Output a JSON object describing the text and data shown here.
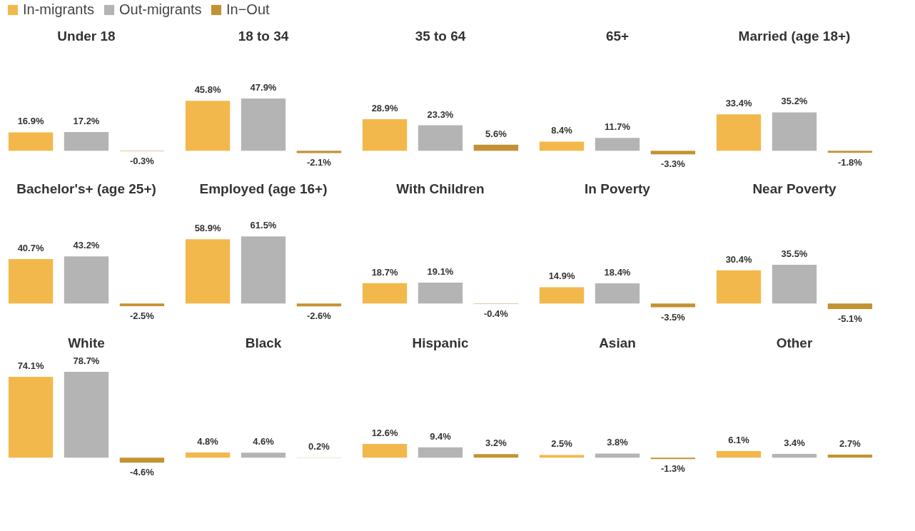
{
  "chart_data": [
    {
      "type": "bar",
      "title": "Under 18",
      "categories": [
        null
      ],
      "legend": "top",
      "series": [
        {
          "name": "In-migrants",
          "color": "#f2b84b",
          "values": [
            16.9
          ],
          "value_labels": [
            "16.9%"
          ]
        },
        {
          "name": "Out-migrants",
          "color": "#b4b4b4",
          "values": [
            17.2
          ],
          "value_labels": [
            "17.2%"
          ]
        },
        {
          "name": "In−Out",
          "color": "#c49232",
          "values": [
            -0.3
          ],
          "value_labels": [
            "-0.3%"
          ]
        }
      ]
    },
    {
      "type": "bar",
      "title": "18 to 34",
      "categories": [
        null
      ],
      "series": [
        {
          "name": "In-migrants",
          "color": "#f2b84b",
          "values": [
            45.8
          ],
          "value_labels": [
            "45.8%"
          ]
        },
        {
          "name": "Out-migrants",
          "color": "#b4b4b4",
          "values": [
            47.9
          ],
          "value_labels": [
            "47.9%"
          ]
        },
        {
          "name": "In−Out",
          "color": "#c49232",
          "values": [
            -2.1
          ],
          "value_labels": [
            "-2.1%"
          ]
        }
      ]
    },
    {
      "type": "bar",
      "title": "35 to 64",
      "categories": [
        null
      ],
      "series": [
        {
          "name": "In-migrants",
          "color": "#f2b84b",
          "values": [
            28.9
          ],
          "value_labels": [
            "28.9%"
          ]
        },
        {
          "name": "Out-migrants",
          "color": "#b4b4b4",
          "values": [
            23.3
          ],
          "value_labels": [
            "23.3%"
          ]
        },
        {
          "name": "In−Out",
          "color": "#c49232",
          "values": [
            5.6
          ],
          "value_labels": [
            "5.6%"
          ]
        }
      ]
    },
    {
      "type": "bar",
      "title": "65+",
      "categories": [
        null
      ],
      "series": [
        {
          "name": "In-migrants",
          "color": "#f2b84b",
          "values": [
            8.4
          ],
          "value_labels": [
            "8.4%"
          ]
        },
        {
          "name": "Out-migrants",
          "color": "#b4b4b4",
          "values": [
            11.7
          ],
          "value_labels": [
            "11.7%"
          ]
        },
        {
          "name": "In−Out",
          "color": "#c49232",
          "values": [
            -3.3
          ],
          "value_labels": [
            "-3.3%"
          ]
        }
      ]
    },
    {
      "type": "bar",
      "title": "Married (age 18+)",
      "categories": [
        null
      ],
      "series": [
        {
          "name": "In-migrants",
          "color": "#f2b84b",
          "values": [
            33.4
          ],
          "value_labels": [
            "33.4%"
          ]
        },
        {
          "name": "Out-migrants",
          "color": "#b4b4b4",
          "values": [
            35.2
          ],
          "value_labels": [
            "35.2%"
          ]
        },
        {
          "name": "In−Out",
          "color": "#c49232",
          "values": [
            -1.8
          ],
          "value_labels": [
            "-1.8%"
          ]
        }
      ]
    },
    {
      "type": "bar",
      "title": "Bachelor's+ (age 25+)",
      "categories": [
        null
      ],
      "series": [
        {
          "name": "In-migrants",
          "color": "#f2b84b",
          "values": [
            40.7
          ],
          "value_labels": [
            "40.7%"
          ]
        },
        {
          "name": "Out-migrants",
          "color": "#b4b4b4",
          "values": [
            43.2
          ],
          "value_labels": [
            "43.2%"
          ]
        },
        {
          "name": "In−Out",
          "color": "#c49232",
          "values": [
            -2.5
          ],
          "value_labels": [
            "-2.5%"
          ]
        }
      ]
    },
    {
      "type": "bar",
      "title": "Employed (age 16+)",
      "categories": [
        null
      ],
      "series": [
        {
          "name": "In-migrants",
          "color": "#f2b84b",
          "values": [
            58.9
          ],
          "value_labels": [
            "58.9%"
          ]
        },
        {
          "name": "Out-migrants",
          "color": "#b4b4b4",
          "values": [
            61.5
          ],
          "value_labels": [
            "61.5%"
          ]
        },
        {
          "name": "In−Out",
          "color": "#c49232",
          "values": [
            -2.6
          ],
          "value_labels": [
            "-2.6%"
          ]
        }
      ]
    },
    {
      "type": "bar",
      "title": "With Children",
      "categories": [
        null
      ],
      "series": [
        {
          "name": "In-migrants",
          "color": "#f2b84b",
          "values": [
            18.7
          ],
          "value_labels": [
            "18.7%"
          ]
        },
        {
          "name": "Out-migrants",
          "color": "#b4b4b4",
          "values": [
            19.1
          ],
          "value_labels": [
            "19.1%"
          ]
        },
        {
          "name": "In−Out",
          "color": "#c49232",
          "values": [
            -0.4
          ],
          "value_labels": [
            "-0.4%"
          ]
        }
      ]
    },
    {
      "type": "bar",
      "title": "In Poverty",
      "categories": [
        null
      ],
      "series": [
        {
          "name": "In-migrants",
          "color": "#f2b84b",
          "values": [
            14.9
          ],
          "value_labels": [
            "14.9%"
          ]
        },
        {
          "name": "Out-migrants",
          "color": "#b4b4b4",
          "values": [
            18.4
          ],
          "value_labels": [
            "18.4%"
          ]
        },
        {
          "name": "In−Out",
          "color": "#c49232",
          "values": [
            -3.5
          ],
          "value_labels": [
            "-3.5%"
          ]
        }
      ]
    },
    {
      "type": "bar",
      "title": "Near Poverty",
      "categories": [
        null
      ],
      "series": [
        {
          "name": "In-migrants",
          "color": "#f2b84b",
          "values": [
            30.4
          ],
          "value_labels": [
            "30.4%"
          ]
        },
        {
          "name": "Out-migrants",
          "color": "#b4b4b4",
          "values": [
            35.5
          ],
          "value_labels": [
            "35.5%"
          ]
        },
        {
          "name": "In−Out",
          "color": "#c49232",
          "values": [
            -5.1
          ],
          "value_labels": [
            "-5.1%"
          ]
        }
      ]
    },
    {
      "type": "bar",
      "title": "White",
      "categories": [
        null
      ],
      "series": [
        {
          "name": "In-migrants",
          "color": "#f2b84b",
          "values": [
            74.1
          ],
          "value_labels": [
            "74.1%"
          ]
        },
        {
          "name": "Out-migrants",
          "color": "#b4b4b4",
          "values": [
            78.7
          ],
          "value_labels": [
            "78.7%"
          ]
        },
        {
          "name": "In−Out",
          "color": "#c49232",
          "values": [
            -4.6
          ],
          "value_labels": [
            "-4.6%"
          ]
        }
      ]
    },
    {
      "type": "bar",
      "title": "Black",
      "categories": [
        null
      ],
      "series": [
        {
          "name": "In-migrants",
          "color": "#f2b84b",
          "values": [
            4.8
          ],
          "value_labels": [
            "4.8%"
          ]
        },
        {
          "name": "Out-migrants",
          "color": "#b4b4b4",
          "values": [
            4.6
          ],
          "value_labels": [
            "4.6%"
          ]
        },
        {
          "name": "In−Out",
          "color": "#c49232",
          "values": [
            0.2
          ],
          "value_labels": [
            "0.2%"
          ]
        }
      ]
    },
    {
      "type": "bar",
      "title": "Hispanic",
      "categories": [
        null
      ],
      "series": [
        {
          "name": "In-migrants",
          "color": "#f2b84b",
          "values": [
            12.6
          ],
          "value_labels": [
            "12.6%"
          ]
        },
        {
          "name": "Out-migrants",
          "color": "#b4b4b4",
          "values": [
            9.4
          ],
          "value_labels": [
            "9.4%"
          ]
        },
        {
          "name": "In−Out",
          "color": "#c49232",
          "values": [
            3.2
          ],
          "value_labels": [
            "3.2%"
          ]
        }
      ]
    },
    {
      "type": "bar",
      "title": "Asian",
      "categories": [
        null
      ],
      "series": [
        {
          "name": "In-migrants",
          "color": "#f2b84b",
          "values": [
            2.5
          ],
          "value_labels": [
            "2.5%"
          ]
        },
        {
          "name": "Out-migrants",
          "color": "#b4b4b4",
          "values": [
            3.8
          ],
          "value_labels": [
            "3.8%"
          ]
        },
        {
          "name": "In−Out",
          "color": "#c49232",
          "values": [
            -1.3
          ],
          "value_labels": [
            "-1.3%"
          ]
        }
      ]
    },
    {
      "type": "bar",
      "title": "Other",
      "categories": [
        null
      ],
      "series": [
        {
          "name": "In-migrants",
          "color": "#f2b84b",
          "values": [
            6.1
          ],
          "value_labels": [
            "6.1%"
          ]
        },
        {
          "name": "Out-migrants",
          "color": "#b4b4b4",
          "values": [
            3.4
          ],
          "value_labels": [
            "3.4%"
          ]
        },
        {
          "name": "In−Out",
          "color": "#c49232",
          "values": [
            2.7
          ],
          "value_labels": [
            "2.7%"
          ]
        }
      ]
    }
  ]
}
